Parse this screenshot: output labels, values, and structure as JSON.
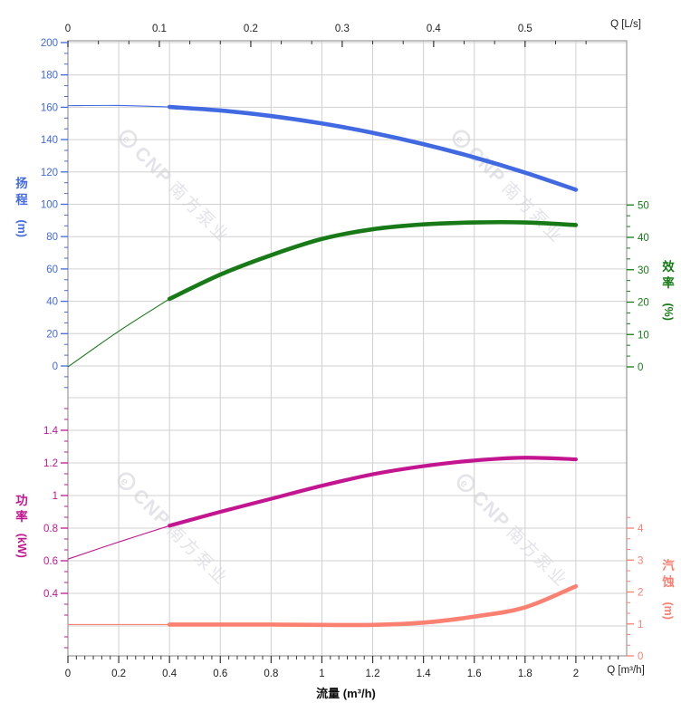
{
  "chart_data": {
    "type": "line",
    "description": "Pump performance curve chart: head, efficiency, shaft power and NPSH versus flow rate",
    "grid": true,
    "legend": false,
    "watermark": {
      "logo_text": "CNP",
      "cn_text": "南方泵业",
      "color": "#e2e4e9"
    },
    "x_axis_bottom": {
      "title": "流量 (m³/h)",
      "corner_label": "Q [m³/h]",
      "tick_labels": [
        "0",
        "0.2",
        "0.4",
        "0.6",
        "0.8",
        "1",
        "1.2",
        "1.4",
        "1.6",
        "1.8",
        "2"
      ],
      "tick_values": [
        0,
        0.2,
        0.4,
        0.6,
        0.8,
        1,
        1.2,
        1.4,
        1.6,
        1.8,
        2
      ],
      "range": [
        0,
        2.2
      ],
      "color": "#222222"
    },
    "x_axis_top": {
      "corner_label": "Q [L/s]",
      "tick_labels": [
        "0",
        "0.1",
        "0.2",
        "0.3",
        "0.4",
        "0.5"
      ],
      "tick_values": [
        0,
        0.1,
        0.2,
        0.3,
        0.4,
        0.5
      ],
      "range": [
        0,
        0.611
      ],
      "color": "#222222"
    },
    "axes": {
      "head": {
        "title": "扬程",
        "unit": "(m)",
        "side": "left",
        "color": "#4169e1",
        "tick_values": [
          0,
          20,
          40,
          60,
          80,
          100,
          120,
          140,
          160,
          180,
          200
        ],
        "tick_labels": [
          "0",
          "20",
          "40",
          "60",
          "80",
          "100",
          "120",
          "140",
          "160",
          "180",
          "200"
        ],
        "range": [
          0,
          200
        ]
      },
      "efficiency": {
        "title": "效率",
        "unit": "(%)",
        "side": "right",
        "color": "#177a17",
        "tick_values": [
          0,
          10,
          20,
          30,
          40,
          50
        ],
        "tick_labels": [
          "0",
          "10",
          "20",
          "30",
          "40",
          "50"
        ],
        "range": [
          0,
          50
        ]
      },
      "power": {
        "title": "功率",
        "unit": "(kW)",
        "side": "left",
        "color": "#c41590",
        "tick_values": [
          0.4,
          0.6,
          0.8,
          1,
          1.2,
          1.4
        ],
        "tick_labels": [
          "0.4",
          "0.6",
          "0.8",
          "1",
          "1.2",
          "1.4"
        ],
        "range": [
          0.0,
          1.6
        ]
      },
      "npsh": {
        "title": "汽蚀",
        "unit": "(m)",
        "side": "right",
        "color": "#fa8072",
        "tick_values": [
          0,
          1,
          2,
          3,
          4
        ],
        "tick_labels": [
          "0",
          "1",
          "2",
          "3",
          "4"
        ],
        "range": [
          0,
          4
        ]
      }
    },
    "series": [
      {
        "id": "head",
        "name": "扬程 (Head)",
        "axis": "head",
        "color": "#4169e1",
        "thin_until": 0.4,
        "width": 4.6,
        "x": [
          0,
          0.2,
          0.4,
          0.6,
          0.8,
          1.0,
          1.2,
          1.4,
          1.6,
          1.8,
          2.0
        ],
        "y": [
          161,
          161.1,
          160.2,
          158,
          154.6,
          150,
          144.2,
          137.2,
          129,
          119.6,
          109
        ]
      },
      {
        "id": "efficiency",
        "name": "效率 (Efficiency)",
        "axis": "efficiency",
        "color": "#177a17",
        "thin_until": 0.4,
        "width": 4.6,
        "x": [
          0,
          0.2,
          0.4,
          0.6,
          0.8,
          1.0,
          1.2,
          1.4,
          1.6,
          1.8,
          2.0
        ],
        "y": [
          0,
          11,
          21,
          28.5,
          34.5,
          39.5,
          42.5,
          44,
          44.6,
          44.6,
          43.8
        ]
      },
      {
        "id": "power",
        "name": "功率 (Power)",
        "axis": "power",
        "color": "#c41590",
        "thin_until": 0.4,
        "width": 4.2,
        "x": [
          0,
          0.2,
          0.4,
          0.6,
          0.8,
          1.0,
          1.2,
          1.4,
          1.6,
          1.8,
          2.0
        ],
        "y": [
          0.61,
          0.715,
          0.815,
          0.9,
          0.98,
          1.06,
          1.13,
          1.18,
          1.215,
          1.232,
          1.222
        ]
      },
      {
        "id": "npsh",
        "name": "汽蚀 (NPSH)",
        "axis": "npsh",
        "color": "#fa8072",
        "thin_until": 0.4,
        "width": 4.6,
        "x": [
          0,
          0.2,
          0.4,
          0.6,
          0.8,
          1.0,
          1.2,
          1.4,
          1.6,
          1.8,
          2.0
        ],
        "y": [
          0.98,
          0.98,
          0.98,
          0.98,
          0.98,
          0.97,
          0.97,
          1.04,
          1.23,
          1.52,
          2.18
        ]
      }
    ]
  }
}
